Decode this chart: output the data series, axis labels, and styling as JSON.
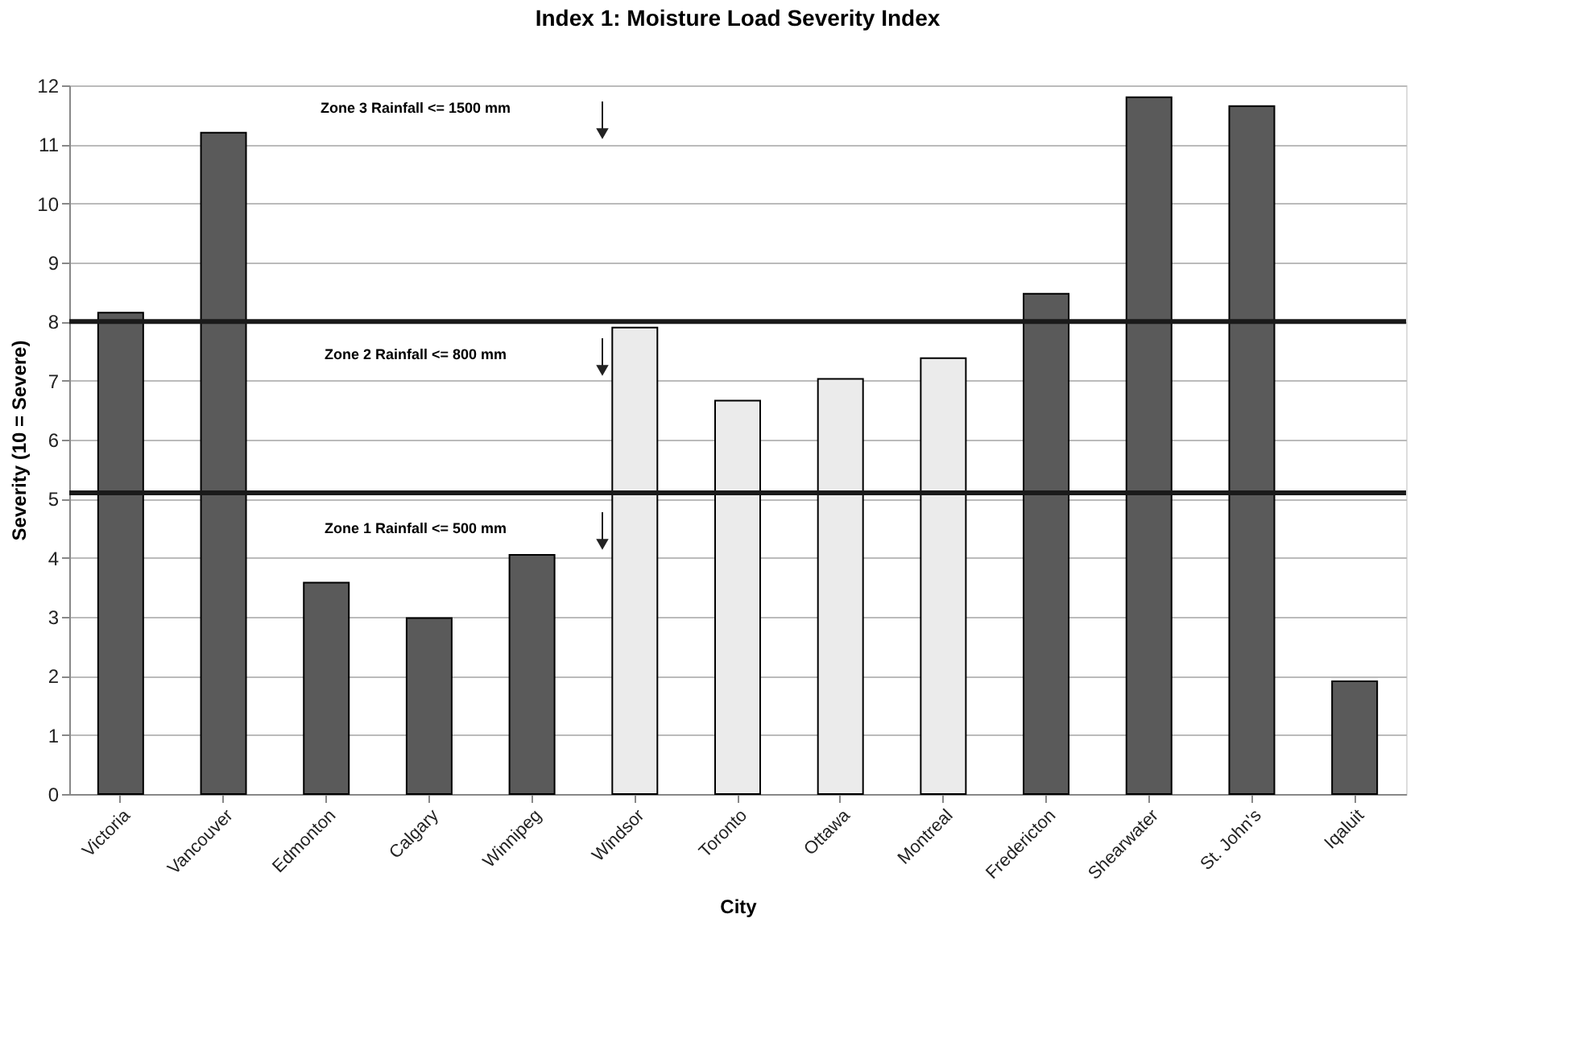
{
  "chart_data": {
    "type": "bar",
    "title": "Index 1: Moisture Load Severity Index",
    "xlabel": "City",
    "ylabel": "Severity (10 = Severe)",
    "categories": [
      "Victoria",
      "Vancouver",
      "Edmonton",
      "Calgary",
      "Winnipeg",
      "Windsor",
      "Toronto",
      "Ottawa",
      "Montreal",
      "Fredericton",
      "Shearwater",
      "St. John's",
      "Iqaluit"
    ],
    "values": [
      8.15,
      11.2,
      3.58,
      2.98,
      4.05,
      7.9,
      6.66,
      7.03,
      7.38,
      8.47,
      11.8,
      11.65,
      1.91
    ],
    "colors": [
      "#5a5a5a",
      "#5a5a5a",
      "#5a5a5a",
      "#5a5a5a",
      "#5a5a5a",
      "#ebebeb",
      "#ebebeb",
      "#ebebeb",
      "#ebebeb",
      "#5a5a5a",
      "#5a5a5a",
      "#5a5a5a",
      "#5a5a5a"
    ],
    "ylim": [
      0,
      12
    ],
    "yticks": [
      0,
      1,
      2,
      3,
      4,
      5,
      6,
      7,
      8,
      9,
      10,
      11,
      12
    ],
    "grid": "y",
    "ref_lines": [
      {
        "axis": "y",
        "value": 8,
        "color": "#1a1a1a"
      },
      {
        "axis": "y",
        "value": 5.1,
        "color": "#1a1a1a"
      }
    ],
    "annotations": [
      "Zone 3 Rainfall <= 1500 mm",
      "Zone 2 Rainfall <= 800 mm",
      "Zone 1 Rainfall <= 500 mm"
    ]
  }
}
